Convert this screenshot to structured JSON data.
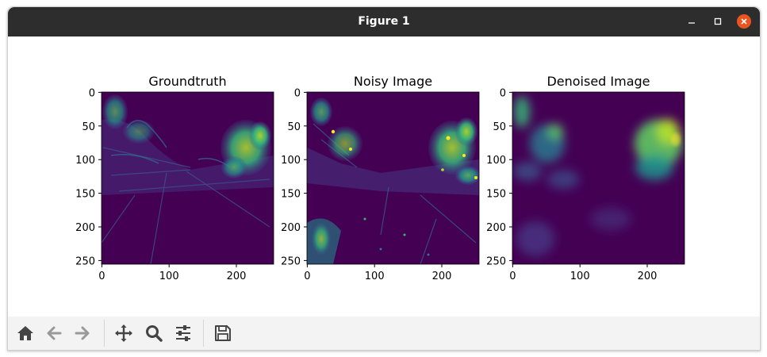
{
  "window": {
    "title": "Figure 1"
  },
  "figure": {
    "panels": [
      {
        "title": "Groundtruth",
        "x_ticks": [
          "0",
          "100",
          "200"
        ],
        "y_ticks": [
          "0",
          "50",
          "100",
          "150",
          "200",
          "250"
        ]
      },
      {
        "title": "Noisy Image",
        "x_ticks": [
          "0",
          "100",
          "200"
        ],
        "y_ticks": [
          "0",
          "50",
          "100",
          "150",
          "200",
          "250"
        ]
      },
      {
        "title": "Denoised Image",
        "x_ticks": [
          "0",
          "100",
          "200"
        ],
        "y_ticks": [
          "0",
          "50",
          "100",
          "150",
          "200",
          "250"
        ]
      }
    ],
    "colormap": {
      "low": "#440154",
      "mid": "#21918c",
      "high": "#fde725"
    }
  },
  "toolbar": {
    "icons": [
      "home-icon",
      "back-icon",
      "forward-icon",
      "pan-icon",
      "zoom-icon",
      "configure-subplots-icon",
      "save-icon"
    ]
  }
}
